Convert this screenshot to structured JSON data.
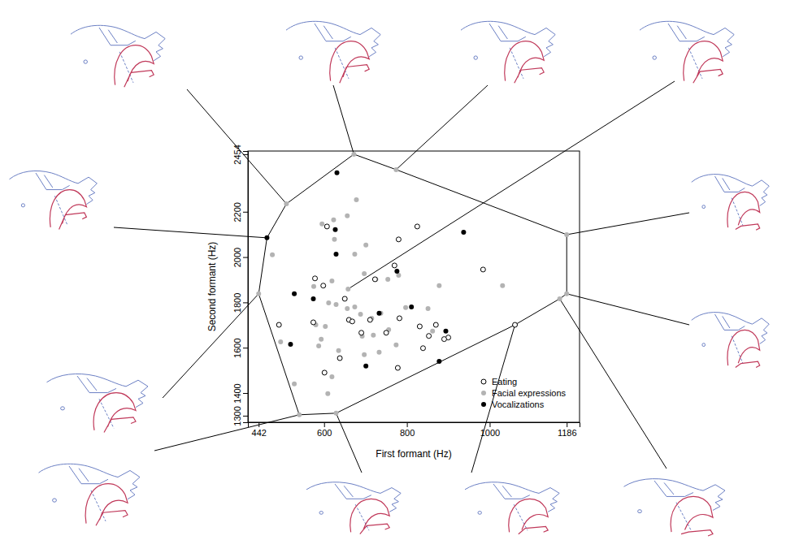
{
  "chart_data": {
    "type": "scatter",
    "x_label": "First formant (Hz)",
    "y_label": "Second formant (Hz)",
    "xlim": [
      416,
      1217
    ],
    "ylim": [
      1271,
      2468
    ],
    "xticks": [
      442,
      600,
      800,
      1000,
      1186
    ],
    "yticks": [
      1300,
      1400,
      1600,
      1800,
      2000,
      2200,
      2454
    ],
    "legend": "bottom-right",
    "series": [
      {
        "name": "Eating",
        "color": "#000000",
        "marker": "open-circle",
        "x": [
          607,
          825,
          780,
          578,
          598,
          770,
          723,
          650,
          660,
          668,
          711,
          750,
          831,
          782,
          870,
          853,
          839,
          900,
          890,
          1061,
          984,
          574,
          601,
          638,
          778,
          690,
          491
        ],
        "y": [
          2135,
          2135,
          2078,
          1906,
          1874,
          1963,
          1902,
          1816,
          1723,
          1716,
          1723,
          1666,
          1694,
          1730,
          1701,
          1652,
          1598,
          1645,
          1638,
          1701,
          1945,
          1712,
          1490,
          1554,
          1511,
          1666,
          1701
        ]
      },
      {
        "name": "Facial expressions",
        "color": "#b3b3b3",
        "marker": "circle",
        "x": [
          509,
          672,
          774,
          1186,
          1186,
          1169,
          629,
          540,
          442,
          678,
          475,
          595,
          623,
          656,
          625,
          701,
          674,
          697,
          725,
          754,
          780,
          619,
          575,
          611,
          629,
          656,
          674,
          688,
          715,
          737,
          692,
          719,
          756,
          797,
          580,
          593,
          587,
          619,
          609,
          495,
          528,
          635,
          697,
          733,
          774,
          862,
          878,
          851,
          1031,
          603,
          658
        ],
        "y": [
          2235,
          2454,
          2386,
          2099,
          1838,
          1816,
          1311,
          1304,
          1838,
          2253,
          2010,
          2146,
          2164,
          2182,
          2078,
          2053,
          2013,
          1927,
          1902,
          1902,
          1920,
          1895,
          1870,
          1798,
          1791,
          1773,
          1780,
          1748,
          1730,
          1752,
          1651,
          1655,
          1680,
          1777,
          1701,
          1637,
          1608,
          1472,
          1397,
          1626,
          1440,
          1587,
          1569,
          1580,
          1612,
          1673,
          1874,
          1773,
          1874,
          1694,
          1859
        ]
      },
      {
        "name": "Vocalizations",
        "color": "#000000",
        "marker": "circle",
        "x": [
          462,
          878,
          631,
          528,
          574,
          627,
          629,
          776,
          811,
          733,
          894,
          701,
          519,
          937
        ],
        "y": [
          2085,
          1540,
          2372,
          1838,
          1816,
          2121,
          2013,
          1938,
          1780,
          1752,
          1673,
          1519,
          1615,
          2110
        ]
      }
    ]
  }
}
